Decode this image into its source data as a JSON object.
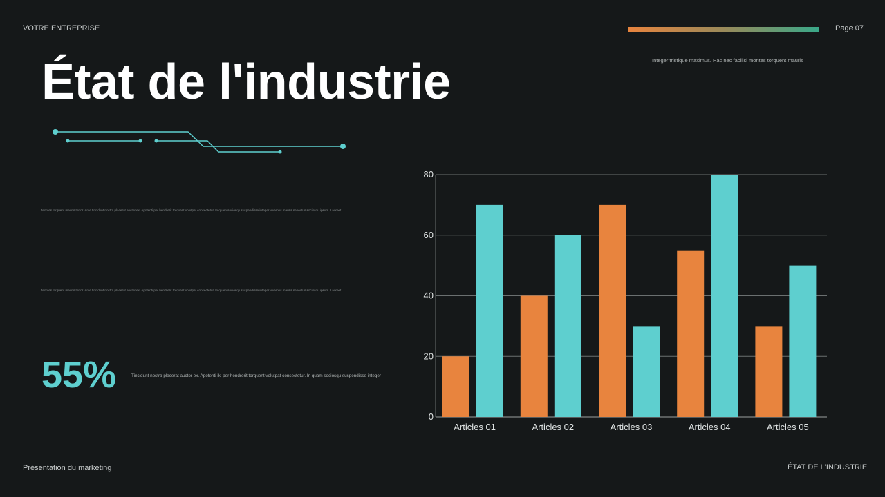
{
  "header": {
    "company": "VOTRE ENTREPRISE",
    "page": "Page 07",
    "subtitle": "Integer tristique maximus. Hac nec facilisi montes torquent mauris"
  },
  "title": "État de l'industrie",
  "paragraphs": [
    "Montes torquent mauris tortor. Ante tincidunt nostra placerat auctor ex. Apotenti per hendrerit torquent volutpat consectetur. In quam sociosqu suspendisse integer vivamus mauris senectus sociosqu ipsum. Laoreet",
    "Montes torquent mauris tortor. Ante tincidunt nostra placerat auctor ex. Apotenti per hendrerit torquent volutpat consectetur. In quam sociosqu suspendisse integer vivamus mauris senectus sociosqu ipsum. Laoreet"
  ],
  "stat": {
    "value": "55%",
    "text": "Tincidunt nostra placerat auctor ex. Apotenti iki per hendrerit torquent volutpat consectetur. In quam sociosqu suspendisse integer"
  },
  "footer": {
    "left": "Présentation du marketing",
    "right": "ÉTAT DE L'INDUSTRIE"
  },
  "colors": {
    "orange": "#e8843e",
    "teal": "#5ecfcf",
    "background": "#151819"
  },
  "chart_data": {
    "type": "bar",
    "categories": [
      "Articles 01",
      "Articles 02",
      "Articles 03",
      "Articles 04",
      "Articles 05"
    ],
    "series": [
      {
        "values": [
          20,
          40,
          70,
          55,
          30
        ],
        "color": "#e8843e"
      },
      {
        "values": [
          70,
          60,
          30,
          80,
          50
        ],
        "color": "#5ecfcf"
      }
    ],
    "ylim": [
      0,
      80
    ],
    "yticks": [
      0,
      20,
      40,
      60,
      80
    ],
    "grid": true
  }
}
